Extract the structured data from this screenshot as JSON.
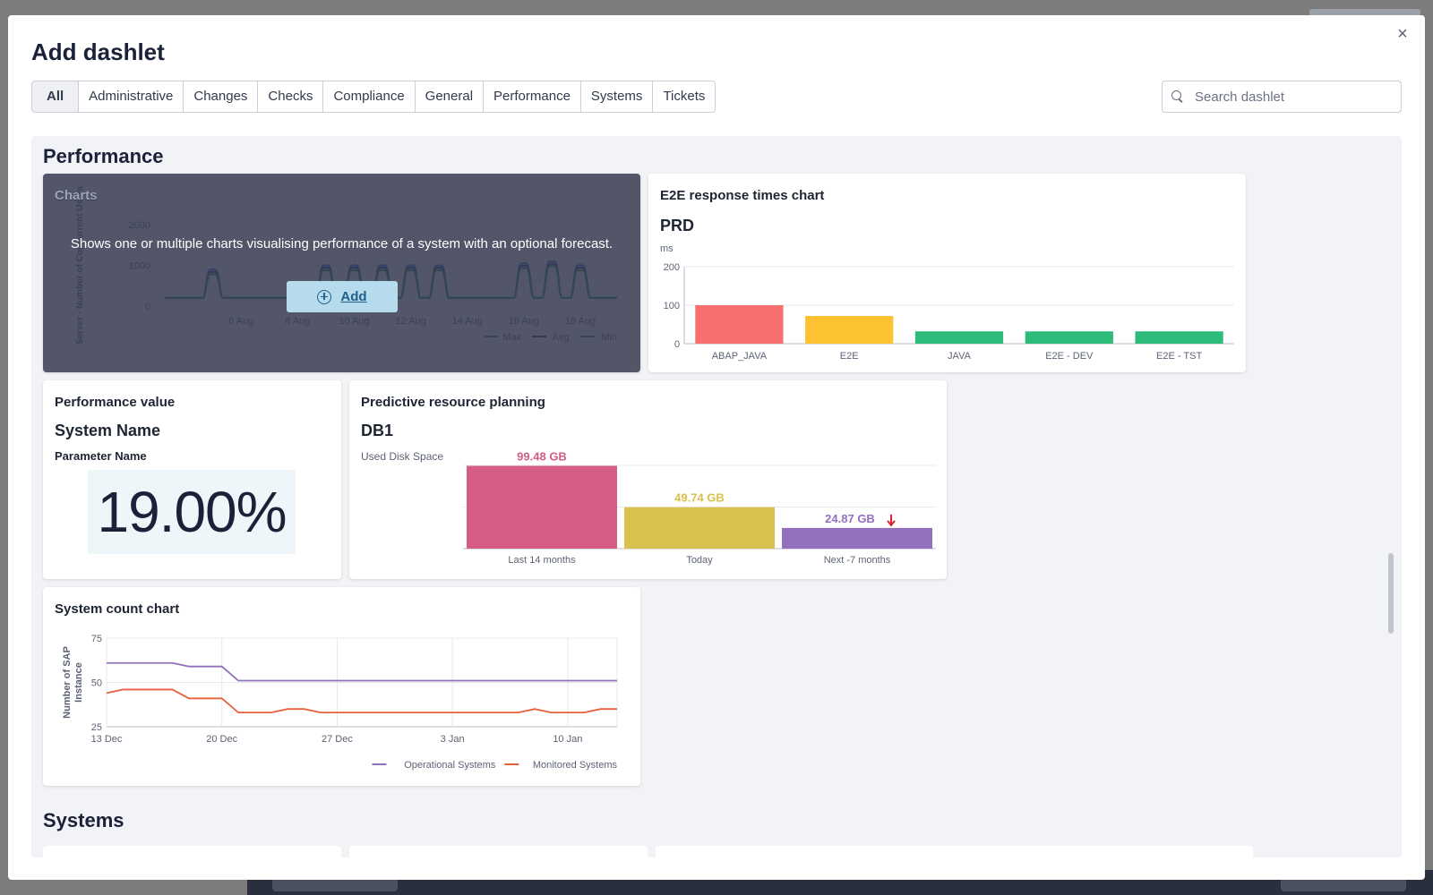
{
  "modal": {
    "title": "Add dashlet",
    "close_icon": "×"
  },
  "tabs": [
    "All",
    "Administrative",
    "Changes",
    "Checks",
    "Compliance",
    "General",
    "Performance",
    "Systems",
    "Tickets"
  ],
  "search": {
    "placeholder": "Search dashlet",
    "value": ""
  },
  "sections": {
    "performance": "Performance",
    "systems": "Systems"
  },
  "charts_card": {
    "title": "Charts",
    "description": "Shows one or multiple charts visualising performance of a system with an optional forecast.",
    "add_label": "Add",
    "ylabel": "Server - Number of Concurrent Users",
    "yticks": [
      "2000",
      "1000",
      "0"
    ],
    "xticks": [
      "6 Aug",
      "8 Aug",
      "10 Aug",
      "12 Aug",
      "14 Aug",
      "16 Aug",
      "18 Aug"
    ],
    "legend": [
      "Max",
      "Avg",
      "Min"
    ]
  },
  "e2e_card": {
    "title": "E2E response times chart",
    "subtitle": "PRD",
    "unit": "ms"
  },
  "perf_value_card": {
    "title": "Performance value",
    "system": "System Name",
    "parameter": "Parameter Name",
    "value": "19.00%"
  },
  "prp_card": {
    "title": "Predictive resource planning",
    "subtitle": "DB1",
    "label": "Used Disk Space"
  },
  "system_count_card": {
    "title": "System count chart"
  },
  "chart_data": [
    {
      "type": "bar",
      "title": "E2E response times chart",
      "subtitle": "PRD",
      "ylabel": "ms",
      "ylim": [
        0,
        200
      ],
      "yticks": [
        0,
        100,
        200
      ],
      "categories": [
        "ABAP_JAVA",
        "E2E",
        "JAVA",
        "E2E - DEV",
        "E2E - TST"
      ],
      "values": [
        100,
        72,
        32,
        32,
        32
      ],
      "colors": [
        "#f76f6f",
        "#fdc232",
        "#2dbb7a",
        "#2dbb7a",
        "#2dbb7a"
      ],
      "grid": true
    },
    {
      "type": "bar",
      "title": "Predictive resource planning",
      "subtitle": "DB1",
      "ylabel": "Used Disk Space",
      "categories": [
        "Last 14 months",
        "Today",
        "Next -7 months"
      ],
      "values": [
        99.48,
        49.74,
        24.87
      ],
      "data_labels": [
        "99.48 GB",
        "49.74 GB",
        "24.87 GB"
      ],
      "colors": [
        "#d45c86",
        "#d9c04f",
        "#9370bc"
      ],
      "ylim": [
        0,
        100
      ],
      "trend_icon": "arrow-down-icon"
    },
    {
      "type": "line",
      "title": "System count chart",
      "ylabel": "Number of SAP Instance",
      "ylim": [
        25,
        75
      ],
      "yticks": [
        25,
        50,
        75
      ],
      "xticks": [
        "13 Dec",
        "20 Dec",
        "27 Dec",
        "3 Jan",
        "10 Jan"
      ],
      "x": [
        "13 Dec",
        "14 Dec",
        "15 Dec",
        "16 Dec",
        "17 Dec",
        "18 Dec",
        "19 Dec",
        "20 Dec",
        "21 Dec",
        "22 Dec",
        "23 Dec",
        "24 Dec",
        "25 Dec",
        "26 Dec",
        "27 Dec",
        "28 Dec",
        "29 Dec",
        "30 Dec",
        "31 Dec",
        "1 Jan",
        "2 Jan",
        "3 Jan",
        "4 Jan",
        "5 Jan",
        "6 Jan",
        "7 Jan",
        "8 Jan",
        "9 Jan",
        "10 Jan",
        "11 Jan",
        "12 Jan",
        "13 Jan"
      ],
      "series": [
        {
          "name": "Operational Systems",
          "color": "#9370bc",
          "values": [
            61,
            61,
            61,
            61,
            61,
            59,
            59,
            59,
            51,
            51,
            51,
            51,
            51,
            51,
            51,
            51,
            51,
            51,
            51,
            51,
            51,
            51,
            51,
            51,
            51,
            51,
            51,
            51,
            51,
            51,
            51,
            51
          ]
        },
        {
          "name": "Monitored Systems",
          "color": "#e8603c",
          "values": [
            44,
            46,
            46,
            46,
            46,
            41,
            41,
            41,
            33,
            33,
            33,
            35,
            35,
            33,
            33,
            33,
            33,
            33,
            33,
            33,
            33,
            33,
            33,
            33,
            33,
            33,
            35,
            33,
            33,
            33,
            35,
            35
          ]
        }
      ],
      "grid": true,
      "legend": "bottom-right"
    },
    {
      "type": "line",
      "title": "Charts",
      "ylabel": "Server - Number of Concurrent Users",
      "ylim": [
        0,
        2000
      ],
      "yticks": [
        0,
        1000,
        2000
      ],
      "xticks": [
        "6 Aug",
        "8 Aug",
        "10 Aug",
        "12 Aug",
        "14 Aug",
        "16 Aug",
        "18 Aug"
      ],
      "series": [
        {
          "name": "Max",
          "color": "#3a7bd5"
        },
        {
          "name": "Avg",
          "color": "#2c2f8f"
        },
        {
          "name": "Min",
          "color": "#1f9e6e"
        }
      ],
      "peaks": [
        {
          "x": "5 Aug",
          "value": 900
        },
        {
          "x": "9 Aug",
          "value": 1000
        },
        {
          "x": "10 Aug",
          "value": 1000
        },
        {
          "x": "11 Aug",
          "value": 1000
        },
        {
          "x": "12 Aug",
          "value": 1000
        },
        {
          "x": "13 Aug",
          "value": 1000
        },
        {
          "x": "16 Aug",
          "value": 1050
        },
        {
          "x": "17 Aug",
          "value": 1100
        },
        {
          "x": "18 Aug",
          "value": 1000
        }
      ],
      "baseline": 200,
      "legend": "bottom-right"
    }
  ]
}
